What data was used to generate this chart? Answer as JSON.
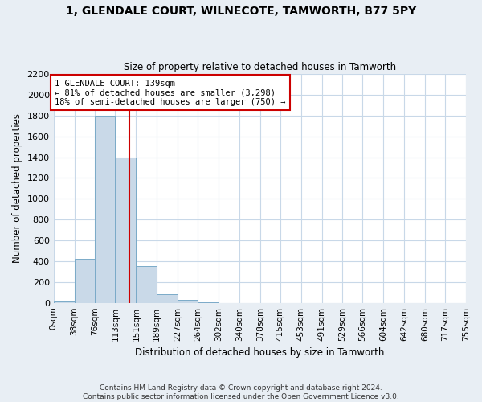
{
  "title": "1, GLENDALE COURT, WILNECOTE, TAMWORTH, B77 5PY",
  "subtitle": "Size of property relative to detached houses in Tamworth",
  "xlabel": "Distribution of detached houses by size in Tamworth",
  "ylabel": "Number of detached properties",
  "bar_edges": [
    0,
    38,
    76,
    113,
    151,
    189,
    227,
    264,
    302,
    340,
    378,
    415,
    453,
    491,
    529,
    566,
    604,
    642,
    680,
    717,
    755
  ],
  "bar_heights": [
    15,
    420,
    1800,
    1400,
    350,
    80,
    25,
    5,
    0,
    0,
    0,
    0,
    0,
    0,
    0,
    0,
    0,
    0,
    0,
    0
  ],
  "bar_color": "#c9d9e8",
  "bar_edgecolor": "#7aaac8",
  "grid_color": "#c8d8e8",
  "vline_x": 139,
  "vline_color": "#cc0000",
  "annotation_text": "1 GLENDALE COURT: 139sqm\n← 81% of detached houses are smaller (3,298)\n18% of semi-detached houses are larger (750) →",
  "annotation_box_color": "#cc0000",
  "ylim": [
    0,
    2200
  ],
  "yticks": [
    0,
    200,
    400,
    600,
    800,
    1000,
    1200,
    1400,
    1600,
    1800,
    2000,
    2200
  ],
  "xtick_labels": [
    "0sqm",
    "38sqm",
    "76sqm",
    "113sqm",
    "151sqm",
    "189sqm",
    "227sqm",
    "264sqm",
    "302sqm",
    "340sqm",
    "378sqm",
    "415sqm",
    "453sqm",
    "491sqm",
    "529sqm",
    "566sqm",
    "604sqm",
    "642sqm",
    "680sqm",
    "717sqm",
    "755sqm"
  ],
  "footer_text": "Contains HM Land Registry data © Crown copyright and database right 2024.\nContains public sector information licensed under the Open Government Licence v3.0.",
  "bg_color": "#e8eef4",
  "plot_bg_color": "#ffffff"
}
